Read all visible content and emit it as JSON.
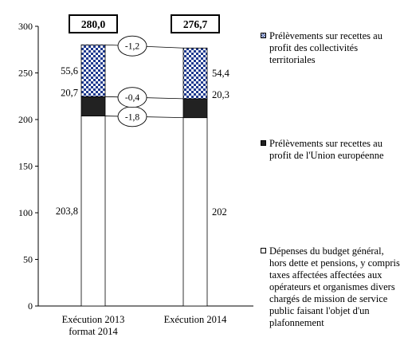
{
  "chart_data": {
    "type": "bar",
    "stacked": true,
    "categories": [
      "Exécution 2013\nformat 2014",
      "Exécution 2014"
    ],
    "ylim": [
      0,
      300
    ],
    "yticks": [
      0,
      50,
      100,
      150,
      200,
      250,
      300
    ],
    "series": [
      {
        "name": "Dépenses du budget général, hors dette et pensions, y compris taxes affectées affectées aux opérateurs et organismes divers chargés de mission de service public faisant l'objet d'un plafonnement",
        "values": [
          203.8,
          202
        ],
        "labels": [
          "203,8",
          "202"
        ],
        "pattern": "white"
      },
      {
        "name": "Prélèvements sur recettes au profit de l'Union européenne",
        "values": [
          20.7,
          20.3
        ],
        "labels": [
          "20,7",
          "20,3"
        ],
        "pattern": "black"
      },
      {
        "name": "Prélèvements sur recettes au profit des collectivités territoriales",
        "values": [
          55.6,
          54.4
        ],
        "labels": [
          "55,6",
          "54,4"
        ],
        "pattern": "checker"
      }
    ],
    "totals": [
      "280,0",
      "276,7"
    ],
    "differences": [
      "-1,8",
      "-0,4",
      "-1,2"
    ],
    "legend_position": "right"
  }
}
